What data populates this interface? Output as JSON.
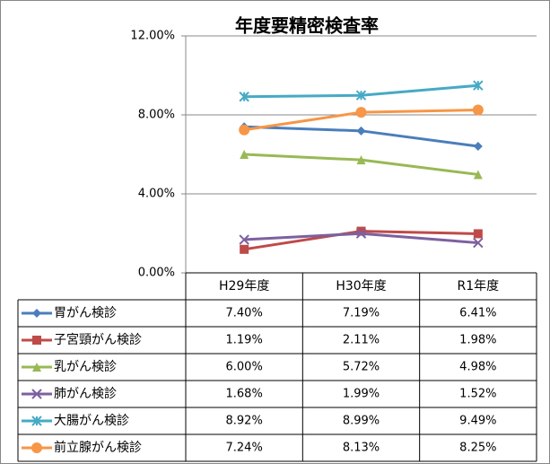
{
  "chart_data": {
    "type": "line",
    "title": "年度要精密検査率",
    "categories": [
      "H29年度",
      "H30年度",
      "R1年度"
    ],
    "ylim": [
      0,
      12
    ],
    "yticks": [
      {
        "value": 0,
        "label": "0.00%"
      },
      {
        "value": 4,
        "label": "4.00%"
      },
      {
        "value": 8,
        "label": "8.00%"
      },
      {
        "value": 12,
        "label": "12.00%"
      }
    ],
    "grid": true,
    "series": [
      {
        "name": "胃がん検診",
        "color": "#4a7ebb",
        "marker": "diamond",
        "values": [
          7.4,
          7.19,
          6.41
        ],
        "value_labels": [
          "7.40%",
          "7.19%",
          "6.41%"
        ]
      },
      {
        "name": "子宮頸がん検診",
        "color": "#be4b48",
        "marker": "square",
        "values": [
          1.19,
          2.11,
          1.98
        ],
        "value_labels": [
          "1.19%",
          "2.11%",
          "1.98%"
        ]
      },
      {
        "name": "乳がん検診",
        "color": "#98b954",
        "marker": "triangle",
        "values": [
          6.0,
          5.72,
          4.98
        ],
        "value_labels": [
          "6.00%",
          "5.72%",
          "4.98%"
        ]
      },
      {
        "name": "肺がん検診",
        "color": "#7d60a0",
        "marker": "x",
        "values": [
          1.68,
          1.99,
          1.52
        ],
        "value_labels": [
          "1.68%",
          "1.99%",
          "1.52%"
        ]
      },
      {
        "name": "大腸がん検診",
        "color": "#46aac5",
        "marker": "star",
        "values": [
          8.92,
          8.99,
          9.49
        ],
        "value_labels": [
          "8.92%",
          "8.99%",
          "9.49%"
        ]
      },
      {
        "name": "前立腺がん検診",
        "color": "#f79646",
        "marker": "circle",
        "values": [
          7.24,
          8.13,
          8.25
        ],
        "value_labels": [
          "7.24%",
          "8.13%",
          "8.25%"
        ]
      }
    ]
  }
}
